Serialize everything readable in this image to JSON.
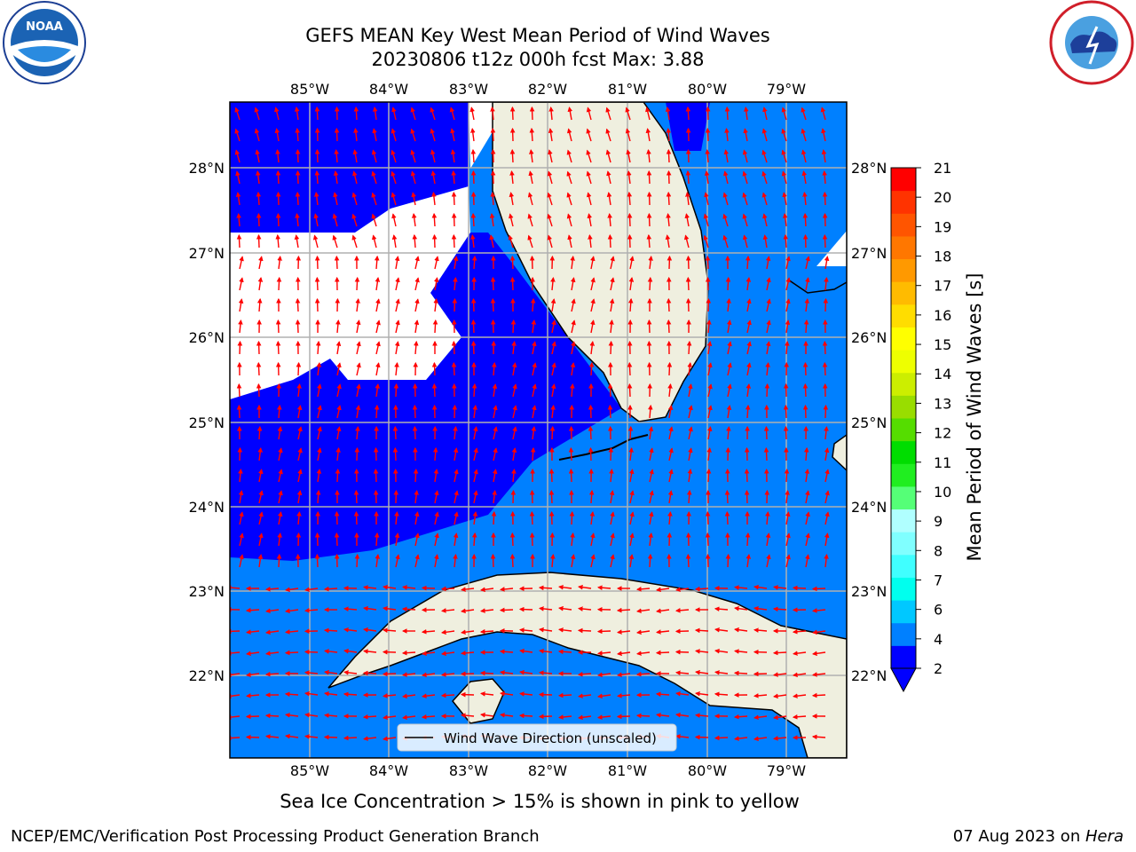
{
  "title_line1": "GEFS MEAN Key West Mean Period of Wind Waves",
  "title_line2": "20230806 t12z 000h fcst   Max: 3.88",
  "lon_labels": [
    "85°W",
    "84°W",
    "83°W",
    "82°W",
    "81°W",
    "80°W",
    "79°W"
  ],
  "lat_labels": [
    "28°N",
    "27°N",
    "26°N",
    "25°N",
    "24°N",
    "23°N",
    "22°N"
  ],
  "colorbar": {
    "label": "Mean Period of Wind Waves [s]",
    "ticks": [
      "21",
      "20",
      "19",
      "18",
      "17",
      "16",
      "15",
      "14",
      "13",
      "12",
      "11",
      "10",
      "9",
      "8",
      "7",
      "6",
      "4",
      "2"
    ],
    "colors": [
      "#0000ff",
      "#0080ff",
      "#00c8ff",
      "#00ffee",
      "#40ffff",
      "#80ffff",
      "#b0ffff",
      "#55ff77",
      "#20ee20",
      "#00dd00",
      "#55dd00",
      "#99dd00",
      "#ccee00",
      "#eeff00",
      "#ffff00",
      "#ffdd00",
      "#ffbb00",
      "#ff9900",
      "#ff7700",
      "#ff5500",
      "#ff3300",
      "#ff0000"
    ]
  },
  "legend_label": "Wind Wave Direction (unscaled)",
  "ice_note": "Sea Ice Concentration > 15% is shown in pink to yellow",
  "credit": "NCEP/EMC/Verification Post Processing Product Generation Branch",
  "date_text": "07 Aug 2023 on ",
  "host_text": "Hera",
  "noaa_logo_text": "NOAA",
  "colors": {
    "deep_blue": "#0000ff",
    "light_blue": "#0080ff",
    "land": "#efefdf",
    "arrow": "#ff0000",
    "grid": "#b0b0b0"
  }
}
